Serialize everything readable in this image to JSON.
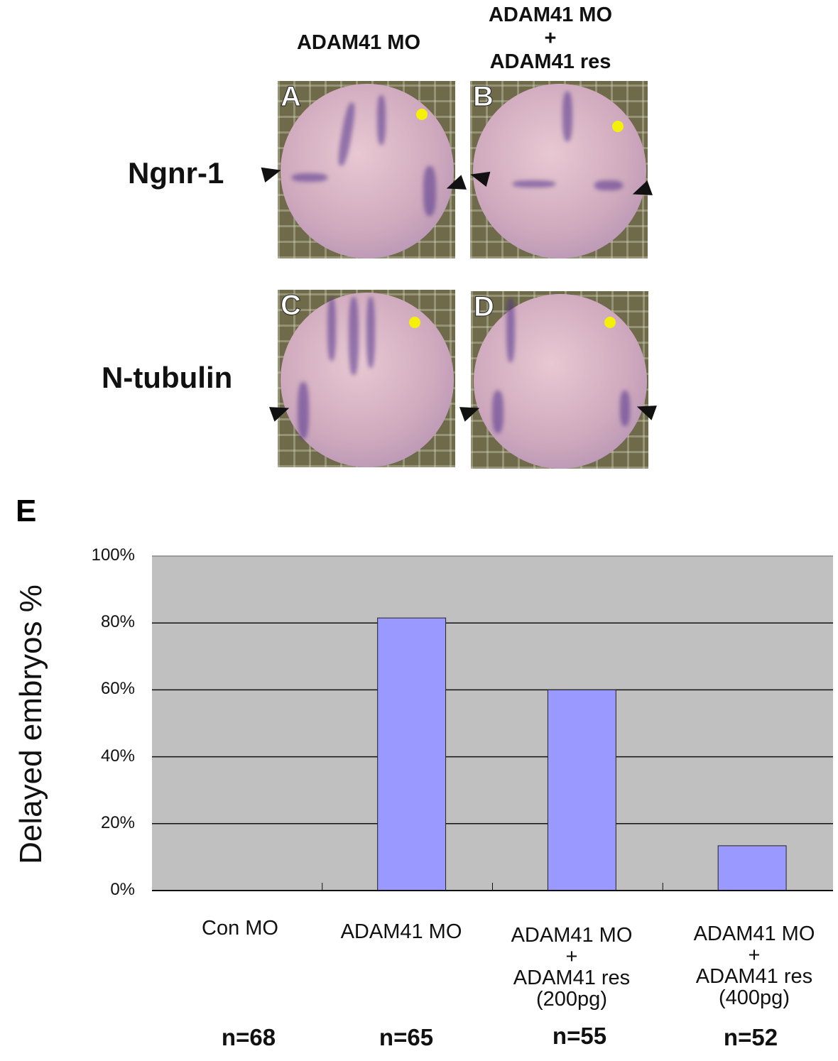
{
  "figure": {
    "column_headers": [
      "ADAM41 MO",
      "ADAM41 MO\n+\nADAM41 res"
    ],
    "row_labels": [
      "Ngnr-1",
      "N-tubulin"
    ],
    "panel_letters": [
      "A",
      "B",
      "C",
      "D"
    ],
    "chart_label": "E"
  },
  "chart_data": {
    "type": "bar",
    "title": "",
    "xlabel": "",
    "ylabel": "Delayed embryos %",
    "categories": [
      "Con MO",
      "ADAM41 MO",
      "ADAM41 MO\n+\nADAM41 res\n(200pg)",
      "ADAM41 MO\n+\nADAM41 res\n(400pg)"
    ],
    "values": [
      0,
      81.5,
      60,
      13.4
    ],
    "n_labels": [
      "n=68",
      "n=65",
      "n=55",
      "n=52"
    ],
    "ylim": [
      0,
      100
    ],
    "yticks": [
      "0%",
      "20%",
      "40%",
      "60%",
      "80%",
      "100%"
    ],
    "grid": true,
    "colors": {
      "bar": "#9999ff",
      "plot_bg": "#c0c0c0"
    }
  }
}
